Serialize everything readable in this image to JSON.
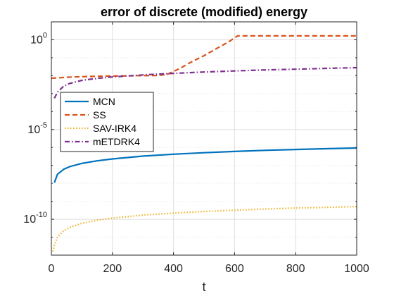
{
  "chart_data": {
    "type": "line",
    "title": "error of discrete (modified) energy",
    "xlabel": "t",
    "ylabel": "",
    "x_scale": "linear",
    "y_scale": "log",
    "xlim": [
      0,
      1000
    ],
    "ylim": [
      1e-12,
      10
    ],
    "x_ticks": [
      0,
      200,
      400,
      600,
      800,
      1000
    ],
    "x_tick_labels": [
      "0",
      "200",
      "400",
      "600",
      "800",
      "1000"
    ],
    "y_ticks": [
      {
        "value": 1,
        "base": "10",
        "exp": "0"
      },
      {
        "value": 1e-05,
        "base": "10",
        "exp": "-5"
      },
      {
        "value": 1e-10,
        "base": "10",
        "exp": "-10"
      }
    ],
    "grid": true,
    "legend_position": "middle-left",
    "series": [
      {
        "name": "MCN",
        "color": "#0072BD",
        "style": "solid",
        "x": [
          10,
          20,
          40,
          60,
          100,
          150,
          200,
          300,
          400,
          500,
          600,
          700,
          800,
          900,
          1000
        ],
        "y": [
          1.1e-08,
          3.2e-08,
          6e-08,
          8.5e-08,
          1.3e-07,
          1.8e-07,
          2.3e-07,
          3.3e-07,
          4.2e-07,
          5.1e-07,
          6e-07,
          6.9e-07,
          7.7e-07,
          8.5e-07,
          9.3e-07
        ]
      },
      {
        "name": "SS",
        "color": "#D95319",
        "style": "dashed",
        "x": [
          0,
          50,
          100,
          150,
          200,
          250,
          300,
          350,
          380,
          420,
          460,
          500,
          540,
          580,
          610,
          650,
          700,
          800,
          900,
          1000
        ],
        "y": [
          0.0072,
          0.0082,
          0.0088,
          0.0092,
          0.0096,
          0.0098,
          0.0101,
          0.0103,
          0.012,
          0.025,
          0.06,
          0.13,
          0.32,
          0.75,
          1.65,
          1.65,
          1.65,
          1.65,
          1.65,
          1.65
        ]
      },
      {
        "name": "SAV-IRK4",
        "color": "#EDB120",
        "style": "dotted",
        "x": [
          5,
          10,
          20,
          40,
          60,
          100,
          150,
          200,
          300,
          400,
          500,
          600,
          700,
          800,
          900,
          1000
        ],
        "y": [
          1.6e-12,
          3.5e-12,
          1e-11,
          2.3e-11,
          3.5e-11,
          6e-11,
          8.8e-11,
          1.15e-10,
          1.7e-10,
          2.2e-10,
          2.7e-10,
          3.2e-10,
          3.7e-10,
          4.2e-10,
          4.6e-10,
          5.1e-10
        ]
      },
      {
        "name": "mETDRK4",
        "color": "#7E2F8E",
        "style": "dashdot",
        "x": [
          10,
          20,
          40,
          60,
          100,
          150,
          200,
          300,
          400,
          500,
          600,
          700,
          800,
          900,
          1000
        ],
        "y": [
          0.00055,
          0.0012,
          0.0026,
          0.0037,
          0.0055,
          0.0071,
          0.0085,
          0.011,
          0.0135,
          0.016,
          0.0185,
          0.021,
          0.023,
          0.0255,
          0.028
        ]
      }
    ]
  }
}
